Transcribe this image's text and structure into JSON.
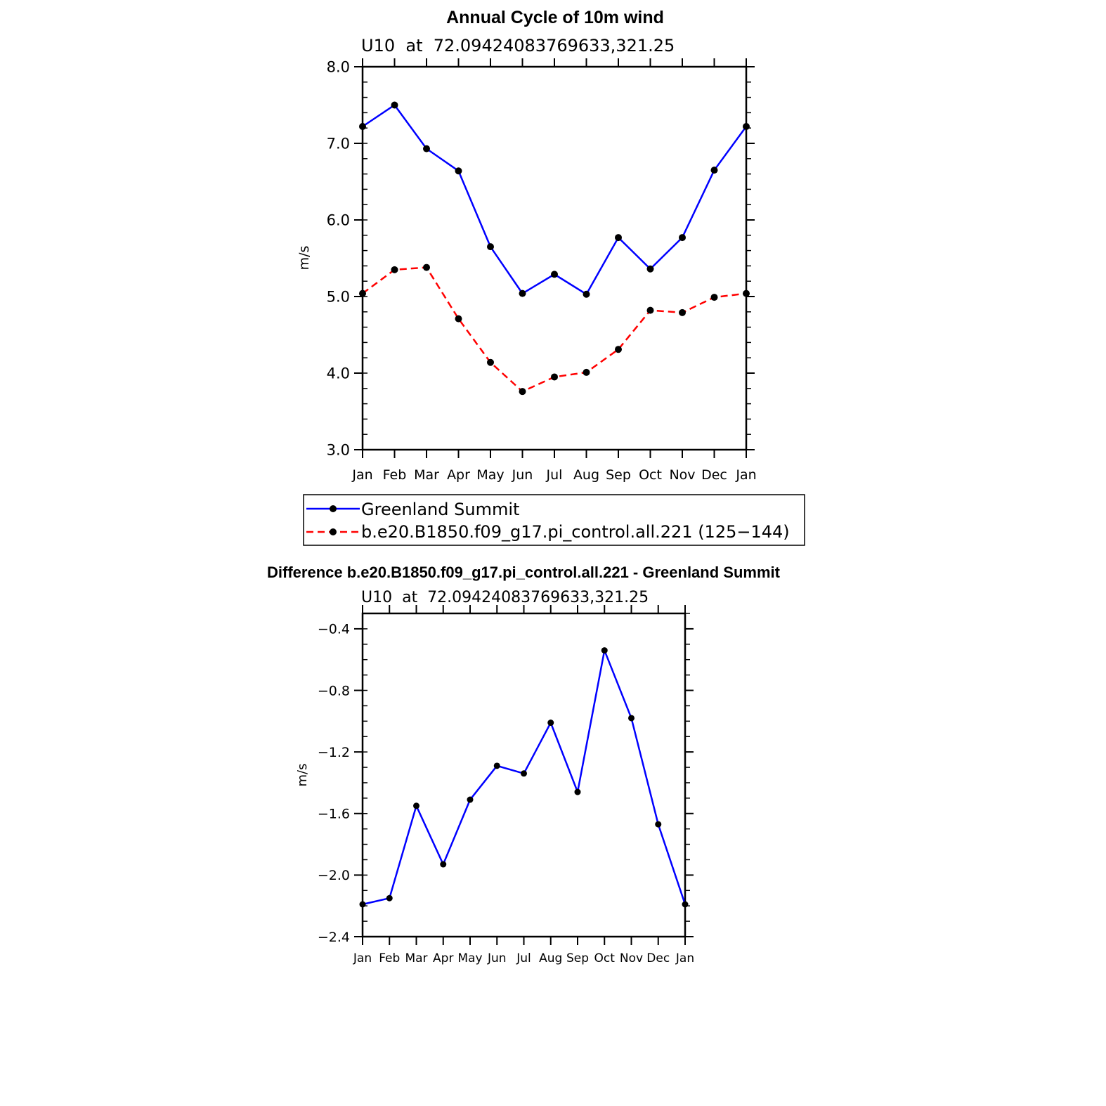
{
  "chart_data": [
    {
      "type": "line",
      "title": "Annual Cycle of 10m wind",
      "subtitle": "U10  at  72.09424083769633,321.25",
      "xlabel": "",
      "ylabel": "m/s",
      "ylim": [
        3.0,
        8.0
      ],
      "yticks": [
        "3.0",
        "4.0",
        "5.0",
        "6.0",
        "7.0",
        "8.0"
      ],
      "categories": [
        "Jan",
        "Feb",
        "Mar",
        "Apr",
        "May",
        "Jun",
        "Jul",
        "Aug",
        "Sep",
        "Oct",
        "Nov",
        "Dec",
        "Jan"
      ],
      "grid": false,
      "legend_position": "bottom",
      "series": [
        {
          "name": "Greenland Summit",
          "color": "#0000ff",
          "dash": "solid",
          "values": [
            7.22,
            7.5,
            6.93,
            6.64,
            5.65,
            5.04,
            5.29,
            5.03,
            5.77,
            5.36,
            5.77,
            6.65,
            7.22
          ]
        },
        {
          "name": "b.e20.B1850.f09_g17.pi_control.all.221 (125−144)",
          "color": "#ff0000",
          "dash": "dashed",
          "values": [
            5.04,
            5.35,
            5.38,
            4.71,
            4.14,
            3.76,
            3.95,
            4.01,
            4.31,
            4.82,
            4.79,
            4.99,
            5.04
          ]
        }
      ]
    },
    {
      "type": "line",
      "title": "Difference b.e20.B1850.f09_g17.pi_control.all.221 - Greenland Summit",
      "subtitle": "U10  at  72.09424083769633,321.25",
      "xlabel": "",
      "ylabel": "m/s",
      "ylim": [
        -2.4,
        -0.3
      ],
      "yticks": [
        "−2.4",
        "−2.0",
        "−1.6",
        "−1.2",
        "−0.8",
        "−0.4"
      ],
      "ytick_values": [
        -2.4,
        -2.0,
        -1.6,
        -1.2,
        -0.8,
        -0.4
      ],
      "categories": [
        "Jan",
        "Feb",
        "Mar",
        "Apr",
        "May",
        "Jun",
        "Jul",
        "Aug",
        "Sep",
        "Oct",
        "Nov",
        "Dec",
        "Jan"
      ],
      "grid": false,
      "series": [
        {
          "color": "#0000ff",
          "dash": "solid",
          "values": [
            -2.19,
            -2.15,
            -1.55,
            -1.93,
            -1.51,
            -1.29,
            -1.34,
            -1.01,
            -1.46,
            -0.54,
            -0.98,
            -1.67,
            -2.19
          ]
        }
      ]
    }
  ]
}
